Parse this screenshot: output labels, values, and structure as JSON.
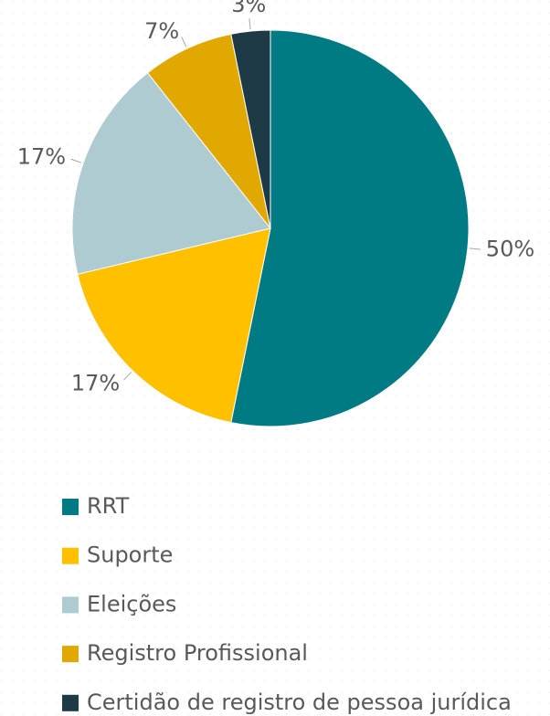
{
  "chart_data": {
    "type": "pie",
    "categories": [
      "RRT",
      "Suporte",
      "Eleições",
      "Registro Profissional",
      "Certidão de registro de pessoa jurídica"
    ],
    "values": [
      50,
      17,
      17,
      7,
      3
    ],
    "value_labels": [
      "50%",
      "17%",
      "17%",
      "7%",
      "3%"
    ],
    "colors": [
      "#007b84",
      "#ffc000",
      "#aecbd1",
      "#e0a800",
      "#1f3a47"
    ],
    "legend": "bottom"
  }
}
